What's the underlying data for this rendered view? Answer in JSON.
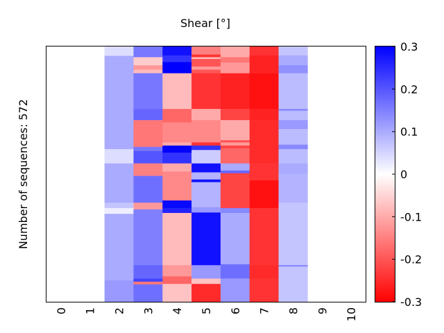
{
  "chart_data": {
    "type": "heatmap",
    "title": "Shear [°]",
    "ylabel": "Number of sequences: 572",
    "x_categories": [
      "0",
      "1",
      "2",
      "3",
      "4",
      "5",
      "6",
      "7",
      "8",
      "9",
      "10"
    ],
    "value_range": [
      -0.3,
      0.3
    ],
    "colorbar_ticks": [
      {
        "value": 0.3,
        "label": "0.3"
      },
      {
        "value": 0.2,
        "label": "0.2"
      },
      {
        "value": 0.1,
        "label": "0.1"
      },
      {
        "value": 0.0,
        "label": "0"
      },
      {
        "value": -0.1,
        "label": "-0.1"
      },
      {
        "value": -0.2,
        "label": "-0.2"
      },
      {
        "value": -0.3,
        "label": "-0.3"
      }
    ],
    "colormap": {
      "low": "#ff0000",
      "mid": "#ffffff",
      "high": "#0000ff"
    },
    "row_count": 572,
    "columns": [
      {
        "x": "0",
        "segments": []
      },
      {
        "x": "1",
        "segments": []
      },
      {
        "x": "2",
        "segments": [
          {
            "from": 0,
            "to": 21,
            "value": 0.04
          },
          {
            "from": 21,
            "to": 60,
            "value": 0.1
          },
          {
            "from": 60,
            "to": 230,
            "value": 0.1
          },
          {
            "from": 230,
            "to": 262,
            "value": 0.04
          },
          {
            "from": 262,
            "to": 350,
            "value": 0.1
          },
          {
            "from": 350,
            "to": 362,
            "value": 0.07
          },
          {
            "from": 362,
            "to": 375,
            "value": 0.02
          },
          {
            "from": 375,
            "to": 524,
            "value": 0.1
          },
          {
            "from": 524,
            "to": 572,
            "value": 0.12
          }
        ]
      },
      {
        "x": "3",
        "segments": [
          {
            "from": 0,
            "to": 24,
            "value": 0.16
          },
          {
            "from": 24,
            "to": 42,
            "value": -0.06
          },
          {
            "from": 42,
            "to": 52,
            "value": -0.12
          },
          {
            "from": 52,
            "to": 60,
            "value": -0.08
          },
          {
            "from": 60,
            "to": 140,
            "value": 0.16
          },
          {
            "from": 140,
            "to": 165,
            "value": 0.18
          },
          {
            "from": 165,
            "to": 225,
            "value": -0.16
          },
          {
            "from": 225,
            "to": 234,
            "value": 0.16
          },
          {
            "from": 234,
            "to": 262,
            "value": 0.2
          },
          {
            "from": 262,
            "to": 290,
            "value": -0.15
          },
          {
            "from": 290,
            "to": 350,
            "value": 0.17
          },
          {
            "from": 350,
            "to": 365,
            "value": -0.12
          },
          {
            "from": 365,
            "to": 490,
            "value": 0.15
          },
          {
            "from": 490,
            "to": 520,
            "value": 0.18
          },
          {
            "from": 520,
            "to": 527,
            "value": 0.22
          },
          {
            "from": 527,
            "to": 533,
            "value": -0.16
          },
          {
            "from": 533,
            "to": 572,
            "value": 0.17
          }
        ]
      },
      {
        "x": "4",
        "segments": [
          {
            "from": 0,
            "to": 20,
            "value": 0.28
          },
          {
            "from": 20,
            "to": 35,
            "value": 0.24
          },
          {
            "from": 35,
            "to": 60,
            "value": 0.3
          },
          {
            "from": 60,
            "to": 140,
            "value": -0.08
          },
          {
            "from": 140,
            "to": 170,
            "value": -0.18
          },
          {
            "from": 170,
            "to": 215,
            "value": -0.14
          },
          {
            "from": 215,
            "to": 222,
            "value": -0.1
          },
          {
            "from": 222,
            "to": 238,
            "value": 0.3
          },
          {
            "from": 238,
            "to": 262,
            "value": 0.24
          },
          {
            "from": 262,
            "to": 280,
            "value": -0.1
          },
          {
            "from": 280,
            "to": 345,
            "value": -0.14
          },
          {
            "from": 345,
            "to": 362,
            "value": 0.29
          },
          {
            "from": 362,
            "to": 373,
            "value": 0.26
          },
          {
            "from": 373,
            "to": 490,
            "value": -0.08
          },
          {
            "from": 490,
            "to": 515,
            "value": -0.12
          },
          {
            "from": 515,
            "to": 532,
            "value": -0.18
          },
          {
            "from": 532,
            "to": 572,
            "value": -0.07
          }
        ]
      },
      {
        "x": "5",
        "segments": [
          {
            "from": 0,
            "to": 18,
            "value": -0.15
          },
          {
            "from": 18,
            "to": 24,
            "value": -0.24
          },
          {
            "from": 24,
            "to": 28,
            "value": -0.08
          },
          {
            "from": 28,
            "to": 45,
            "value": -0.2
          },
          {
            "from": 45,
            "to": 52,
            "value": -0.12
          },
          {
            "from": 52,
            "to": 60,
            "value": -0.2
          },
          {
            "from": 60,
            "to": 140,
            "value": -0.24
          },
          {
            "from": 140,
            "to": 165,
            "value": -0.1
          },
          {
            "from": 165,
            "to": 215,
            "value": -0.14
          },
          {
            "from": 215,
            "to": 222,
            "value": -0.24
          },
          {
            "from": 222,
            "to": 232,
            "value": 0.24
          },
          {
            "from": 232,
            "to": 262,
            "value": 0.06
          },
          {
            "from": 262,
            "to": 282,
            "value": 0.28
          },
          {
            "from": 282,
            "to": 298,
            "value": 0.09
          },
          {
            "from": 298,
            "to": 304,
            "value": 0.28
          },
          {
            "from": 304,
            "to": 360,
            "value": 0.09
          },
          {
            "from": 360,
            "to": 372,
            "value": 0.12
          },
          {
            "from": 372,
            "to": 490,
            "value": 0.28
          },
          {
            "from": 490,
            "to": 520,
            "value": 0.12
          },
          {
            "from": 520,
            "to": 532,
            "value": -0.07
          },
          {
            "from": 532,
            "to": 572,
            "value": -0.25
          }
        ]
      },
      {
        "x": "6",
        "segments": [
          {
            "from": 0,
            "to": 24,
            "value": -0.1
          },
          {
            "from": 24,
            "to": 36,
            "value": -0.16
          },
          {
            "from": 36,
            "to": 60,
            "value": -0.12
          },
          {
            "from": 60,
            "to": 140,
            "value": -0.26
          },
          {
            "from": 140,
            "to": 165,
            "value": -0.22
          },
          {
            "from": 165,
            "to": 210,
            "value": -0.1
          },
          {
            "from": 210,
            "to": 215,
            "value": -0.2
          },
          {
            "from": 215,
            "to": 222,
            "value": -0.12
          },
          {
            "from": 222,
            "to": 228,
            "value": -0.22
          },
          {
            "from": 228,
            "to": 262,
            "value": -0.18
          },
          {
            "from": 262,
            "to": 278,
            "value": 0.1
          },
          {
            "from": 278,
            "to": 284,
            "value": 0.18
          },
          {
            "from": 284,
            "to": 362,
            "value": -0.22
          },
          {
            "from": 362,
            "to": 373,
            "value": 0.14
          },
          {
            "from": 373,
            "to": 488,
            "value": 0.1
          },
          {
            "from": 488,
            "to": 520,
            "value": 0.17
          },
          {
            "from": 520,
            "to": 572,
            "value": 0.12
          }
        ]
      },
      {
        "x": "7",
        "segments": [
          {
            "from": 0,
            "to": 20,
            "value": -0.24
          },
          {
            "from": 20,
            "to": 60,
            "value": -0.26
          },
          {
            "from": 60,
            "to": 140,
            "value": -0.28
          },
          {
            "from": 140,
            "to": 165,
            "value": -0.26
          },
          {
            "from": 165,
            "to": 262,
            "value": -0.25
          },
          {
            "from": 262,
            "to": 300,
            "value": -0.24
          },
          {
            "from": 300,
            "to": 362,
            "value": -0.28
          },
          {
            "from": 362,
            "to": 490,
            "value": -0.24
          },
          {
            "from": 490,
            "to": 520,
            "value": -0.25
          },
          {
            "from": 520,
            "to": 572,
            "value": -0.24
          }
        ]
      },
      {
        "x": "8",
        "segments": [
          {
            "from": 0,
            "to": 20,
            "value": 0.07
          },
          {
            "from": 20,
            "to": 42,
            "value": 0.1
          },
          {
            "from": 42,
            "to": 60,
            "value": 0.13
          },
          {
            "from": 60,
            "to": 140,
            "value": 0.08
          },
          {
            "from": 140,
            "to": 144,
            "value": 0.14
          },
          {
            "from": 144,
            "to": 165,
            "value": 0.08
          },
          {
            "from": 165,
            "to": 185,
            "value": 0.12
          },
          {
            "from": 185,
            "to": 220,
            "value": 0.08
          },
          {
            "from": 220,
            "to": 230,
            "value": 0.14
          },
          {
            "from": 230,
            "to": 262,
            "value": 0.08
          },
          {
            "from": 262,
            "to": 285,
            "value": 0.1
          },
          {
            "from": 285,
            "to": 350,
            "value": 0.09
          },
          {
            "from": 350,
            "to": 490,
            "value": 0.07
          },
          {
            "from": 490,
            "to": 493,
            "value": 0.15
          },
          {
            "from": 493,
            "to": 572,
            "value": 0.07
          }
        ]
      },
      {
        "x": "9",
        "segments": []
      },
      {
        "x": "10",
        "segments": []
      }
    ]
  }
}
